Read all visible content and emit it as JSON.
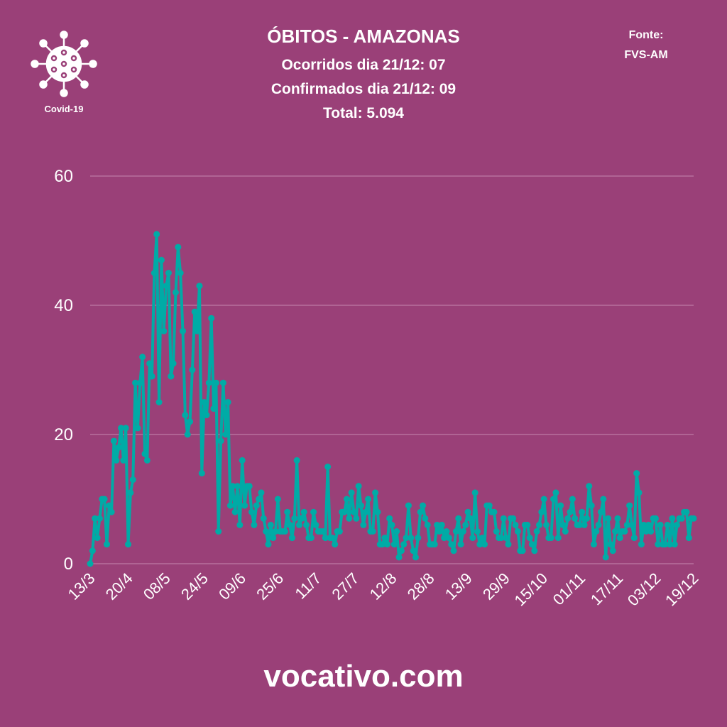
{
  "header": {
    "title": "ÓBITOS - AMAZONAS",
    "line1": "Ocorridos dia 21/12: 07",
    "line2": "Confirmados dia 21/12: 09",
    "line3": "Total: 5.094",
    "source_label": "Fonte:",
    "source_value": "FVS-AM",
    "logo_label": "Covid-19",
    "logo_icon": "virus-icon"
  },
  "footer": {
    "brand": "vocativo.com"
  },
  "colors": {
    "background": "#9a4078",
    "line": "#00aba6",
    "grid": "#b8709e"
  },
  "chart_data": {
    "type": "line",
    "title": "ÓBITOS - AMAZONAS",
    "xlabel": "",
    "ylabel": "",
    "ylim": [
      0,
      60
    ],
    "yticks": [
      0,
      20,
      40,
      60
    ],
    "grid": true,
    "markers": true,
    "xtick_labels": [
      "13/3",
      "20/4",
      "08/5",
      "24/5",
      "09/6",
      "25/6",
      "11/7",
      "27/7",
      "12/8",
      "28/8",
      "13/9",
      "29/9",
      "15/10",
      "01/11",
      "17/11",
      "03/12",
      "19/12"
    ],
    "values": [
      0,
      2,
      7,
      4,
      7,
      10,
      10,
      3,
      9,
      8,
      19,
      16,
      18,
      21,
      16,
      21,
      3,
      11,
      13,
      28,
      21,
      28,
      32,
      17,
      16,
      31,
      29,
      45,
      51,
      25,
      47,
      36,
      43,
      45,
      29,
      31,
      42,
      49,
      45,
      36,
      23,
      20,
      22,
      30,
      39,
      36,
      43,
      14,
      25,
      23,
      28,
      38,
      24,
      28,
      5,
      19,
      28,
      20,
      25,
      9,
      12,
      8,
      12,
      6,
      16,
      9,
      12,
      12,
      8,
      6,
      9,
      10,
      11,
      7,
      5,
      3,
      6,
      4,
      5,
      10,
      5,
      5,
      5,
      8,
      6,
      4,
      7,
      16,
      6,
      7,
      8,
      6,
      4,
      4,
      8,
      6,
      5,
      5,
      5,
      4,
      15,
      4,
      4,
      3,
      5,
      5,
      8,
      8,
      10,
      7,
      11,
      8,
      7,
      12,
      9,
      6,
      8,
      10,
      5,
      5,
      11,
      8,
      3,
      3,
      4,
      3,
      7,
      6,
      3,
      5,
      1,
      2,
      3,
      4,
      9,
      4,
      2,
      1,
      4,
      8,
      9,
      7,
      6,
      3,
      3,
      3,
      6,
      5,
      6,
      4,
      5,
      4,
      3,
      2,
      5,
      7,
      3,
      5,
      6,
      8,
      7,
      4,
      11,
      5,
      3,
      4,
      3,
      9,
      9,
      8,
      8,
      5,
      4,
      4,
      7,
      4,
      3,
      7,
      7,
      6,
      5,
      2,
      2,
      6,
      6,
      4,
      3,
      2,
      5,
      6,
      8,
      10,
      6,
      4,
      4,
      10,
      11,
      4,
      9,
      6,
      5,
      7,
      8,
      10,
      7,
      6,
      6,
      8,
      6,
      7,
      12,
      9,
      3,
      5,
      6,
      8,
      10,
      1,
      7,
      3,
      2,
      5,
      7,
      4,
      5,
      5,
      6,
      9,
      6,
      4,
      14,
      11,
      3,
      6,
      5,
      6,
      5,
      7,
      7,
      3,
      6,
      3,
      3,
      6,
      3,
      7,
      3,
      6,
      7,
      7,
      8,
      8,
      4,
      7,
      7
    ]
  }
}
